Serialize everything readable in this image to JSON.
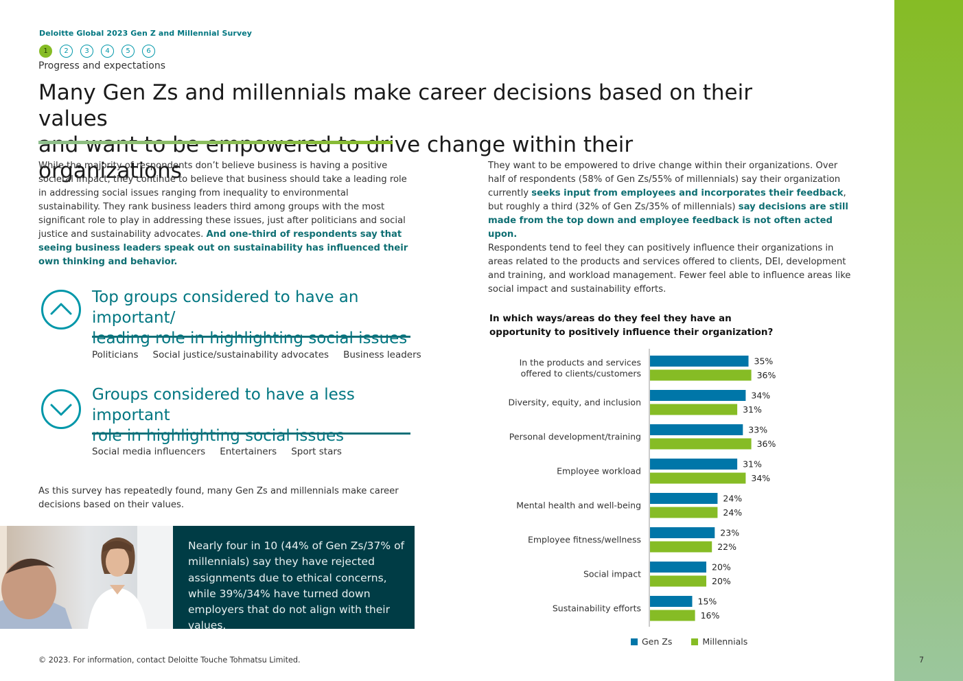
{
  "header": {
    "survey_name": "Deloitte Global 2023 Gen Z and Millennial Survey",
    "steps": [
      "1",
      "2",
      "3",
      "4",
      "5",
      "6"
    ],
    "active_step": "1",
    "section_name": "Progress and expectations",
    "title_line1": "Many Gen Zs and millennials make career decisions based on their values",
    "title_line2": "and want to be empowered to drive change within their organizations"
  },
  "intro": {
    "text": "While the majority of respondents don’t believe business is having a positive societal impact, they continue to believe that business should take a leading role in addressing social issues ranging from inequality to environmental sustainability. They rank business leaders third among groups with the most significant role to play in addressing these issues, just after politicians and social justice and sustainability advocates. ",
    "emphasis": "And one-third of respondents say that seeing business leaders speak out on sustainability has influenced their own thinking and behavior."
  },
  "groups_important": {
    "title_line1": "Top groups considered to have an important/",
    "title_line2": "leading role in highlighting social issues",
    "items": [
      "Politicians",
      "Social justice/sustainability advocates",
      "Business leaders"
    ]
  },
  "groups_less": {
    "title_line1": "Groups considered to have a less important",
    "title_line2": "role in highlighting social issues",
    "items": [
      "Social media influencers",
      "Entertainers",
      "Sport stars"
    ]
  },
  "outro": {
    "text": "As this survey has repeatedly found, many Gen Zs and millennials make career decisions based on their values."
  },
  "callout": {
    "text": "Nearly four in 10 (44% of Gen Zs/37% of millennials) say they have rejected assignments due to ethical concerns, while 39%/34% have turned down employers that do not align with their values."
  },
  "right_column": {
    "p1_a": "They want to be empowered to drive change within their organizations. Over half of respondents (58% of Gen Zs/55% of millennials) say their organization currently ",
    "p1_b": "seeks input from employees and incorporates their feedback",
    "p1_c": ", but roughly a third (32% of Gen Zs/35% of millennials) ",
    "p1_d": "say decisions are still made from the top down and employee feedback is not often acted upon.",
    "p2": "Respondents tend to feel they can positively influence their organizations in areas related to the products and services offered to clients, DEI, development and training, and workload management. Fewer feel able to influence areas like social impact and sustainability efforts."
  },
  "chart_data": {
    "type": "bar",
    "orientation": "horizontal",
    "title_line1": "In which ways/areas do they feel they have an",
    "title_line2": "opportunity to positively influence their organization?",
    "categories": [
      [
        "In the products and services",
        "offered to clients/customers"
      ],
      [
        "Diversity, equity, and inclusion"
      ],
      [
        "Personal development/training"
      ],
      [
        "Employee workload"
      ],
      [
        "Mental health and well-being"
      ],
      [
        "Employee fitness/wellness"
      ],
      [
        "Social impact"
      ],
      [
        "Sustainability efforts"
      ]
    ],
    "series": [
      {
        "name": "Gen Zs",
        "color": "#0076a8",
        "values": [
          35,
          34,
          33,
          31,
          24,
          23,
          20,
          15
        ]
      },
      {
        "name": "Millennials",
        "color": "#86bc25",
        "values": [
          36,
          31,
          36,
          34,
          24,
          22,
          20,
          16
        ]
      }
    ],
    "unit": "%",
    "xlim": [
      0,
      100
    ]
  },
  "footer": {
    "copyright": "© 2023. For information, contact Deloitte Touche Tohmatsu Limited.",
    "page_number": "7"
  },
  "colors": {
    "teal": "#007681",
    "dark_teal": "#003c45",
    "green": "#86bc25",
    "blue": "#0076a8"
  }
}
